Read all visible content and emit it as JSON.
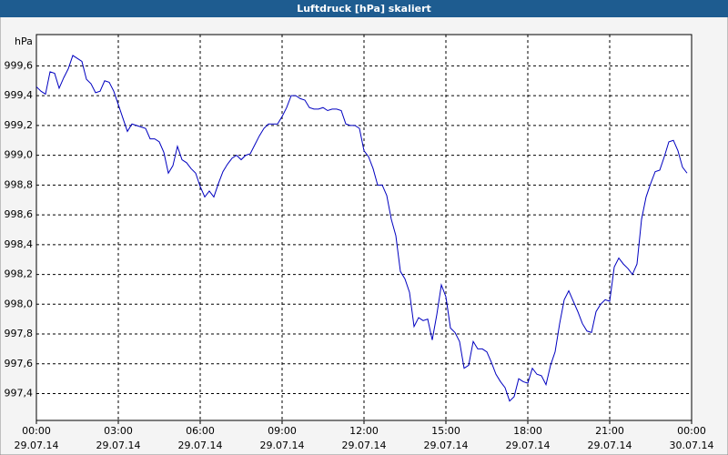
{
  "chart_data": {
    "type": "line",
    "title": "Luftdruck [hPa] skaliert",
    "y_label": "hPa",
    "x": [
      0,
      10,
      20,
      30,
      40,
      50,
      60,
      70,
      80,
      90,
      100,
      110,
      120,
      130,
      140,
      150,
      160,
      170,
      180,
      190,
      200,
      210,
      220,
      230,
      240,
      250,
      260,
      270,
      280,
      290,
      300,
      310,
      320,
      330,
      340,
      350,
      360,
      370,
      380,
      390,
      400,
      410,
      420,
      430,
      440,
      450,
      460,
      470,
      480,
      490,
      500,
      510,
      520,
      530,
      540,
      550,
      560,
      570,
      580,
      590,
      600,
      610,
      620,
      630,
      640,
      650,
      660,
      670,
      680,
      690,
      700,
      710,
      720,
      730,
      740,
      750,
      760,
      770,
      780,
      790,
      800,
      810,
      820,
      830,
      840,
      850,
      860,
      870,
      880,
      890,
      900,
      910,
      920,
      930,
      940,
      950,
      960,
      970,
      980,
      990,
      1000,
      1010,
      1020,
      1030,
      1040,
      1050,
      1060,
      1070,
      1080,
      1090,
      1100,
      1110,
      1120,
      1130,
      1140,
      1150,
      1160,
      1170,
      1180,
      1190,
      1200,
      1210,
      1220,
      1230,
      1240,
      1250,
      1260,
      1270,
      1280,
      1290,
      1300,
      1310,
      1320,
      1330,
      1340,
      1350,
      1360,
      1370,
      1380,
      1390,
      1400,
      1410,
      1420,
      1430
    ],
    "series": [
      {
        "name": "Luftdruck",
        "color": "#0000c0",
        "values": [
          999.46,
          999.43,
          999.41,
          999.56,
          999.55,
          999.45,
          999.52,
          999.58,
          999.67,
          999.65,
          999.63,
          999.51,
          999.48,
          999.42,
          999.43,
          999.5,
          999.49,
          999.43,
          999.34,
          999.25,
          999.16,
          999.21,
          999.2,
          999.19,
          999.18,
          999.11,
          999.11,
          999.09,
          999.02,
          998.88,
          998.93,
          999.06,
          998.97,
          998.95,
          998.91,
          998.88,
          998.79,
          998.72,
          998.76,
          998.72,
          998.81,
          998.89,
          998.94,
          998.98,
          999.0,
          998.97,
          999.0,
          999.01,
          999.07,
          999.13,
          999.18,
          999.21,
          999.21,
          999.21,
          999.26,
          999.32,
          999.4,
          999.4,
          999.38,
          999.37,
          999.32,
          999.31,
          999.31,
          999.32,
          999.3,
          999.31,
          999.31,
          999.3,
          999.21,
          999.2,
          999.2,
          999.18,
          999.03,
          998.99,
          998.91,
          998.8,
          998.8,
          998.73,
          998.57,
          998.46,
          998.22,
          998.17,
          998.08,
          997.85,
          997.91,
          997.89,
          997.9,
          997.76,
          997.93,
          998.13,
          998.05,
          997.84,
          997.81,
          997.75,
          997.57,
          997.59,
          997.75,
          997.7,
          997.7,
          997.68,
          997.61,
          997.53,
          997.48,
          997.44,
          997.35,
          997.38,
          997.5,
          997.48,
          997.47,
          997.57,
          997.53,
          997.52,
          997.46,
          997.59,
          997.68,
          997.87,
          998.03,
          998.09,
          998.02,
          997.95,
          997.87,
          997.82,
          997.81,
          997.95,
          998.0,
          998.03,
          998.02,
          998.25,
          998.31,
          998.27,
          998.24,
          998.2,
          998.27,
          998.57,
          998.72,
          998.81,
          998.89,
          998.9,
          998.99,
          999.09,
          999.1,
          999.03,
          998.92,
          998.88
        ]
      }
    ],
    "xlim": [
      0,
      1440
    ],
    "xticks": [
      {
        "value": 0,
        "label": "00:00"
      },
      {
        "value": 180,
        "label": "03:00"
      },
      {
        "value": 360,
        "label": "06:00"
      },
      {
        "value": 540,
        "label": "09:00"
      },
      {
        "value": 720,
        "label": "12:00"
      },
      {
        "value": 900,
        "label": "15:00"
      },
      {
        "value": 1080,
        "label": "18:00"
      },
      {
        "value": 1260,
        "label": "21:00"
      },
      {
        "value": 1440,
        "label": "00:00"
      }
    ],
    "xtick_dates": [
      "29.07.14",
      "29.07.14",
      "29.07.14",
      "29.07.14",
      "29.07.14",
      "29.07.14",
      "29.07.14",
      "29.07.14",
      "30.07.14"
    ],
    "ylim": [
      997.22,
      999.81
    ],
    "yticks": [
      {
        "value": 997.4,
        "label": "997,4"
      },
      {
        "value": 997.6,
        "label": "997,6"
      },
      {
        "value": 997.8,
        "label": "997,8"
      },
      {
        "value": 998.0,
        "label": "998,0"
      },
      {
        "value": 998.2,
        "label": "998,2"
      },
      {
        "value": 998.4,
        "label": "998,4"
      },
      {
        "value": 998.6,
        "label": "998,6"
      },
      {
        "value": 998.8,
        "label": "998,8"
      },
      {
        "value": 999.0,
        "label": "999,0"
      },
      {
        "value": 999.2,
        "label": "999,2"
      },
      {
        "value": 999.4,
        "label": "999,4"
      },
      {
        "value": 999.6,
        "label": "999,6"
      }
    ],
    "grid": true
  }
}
